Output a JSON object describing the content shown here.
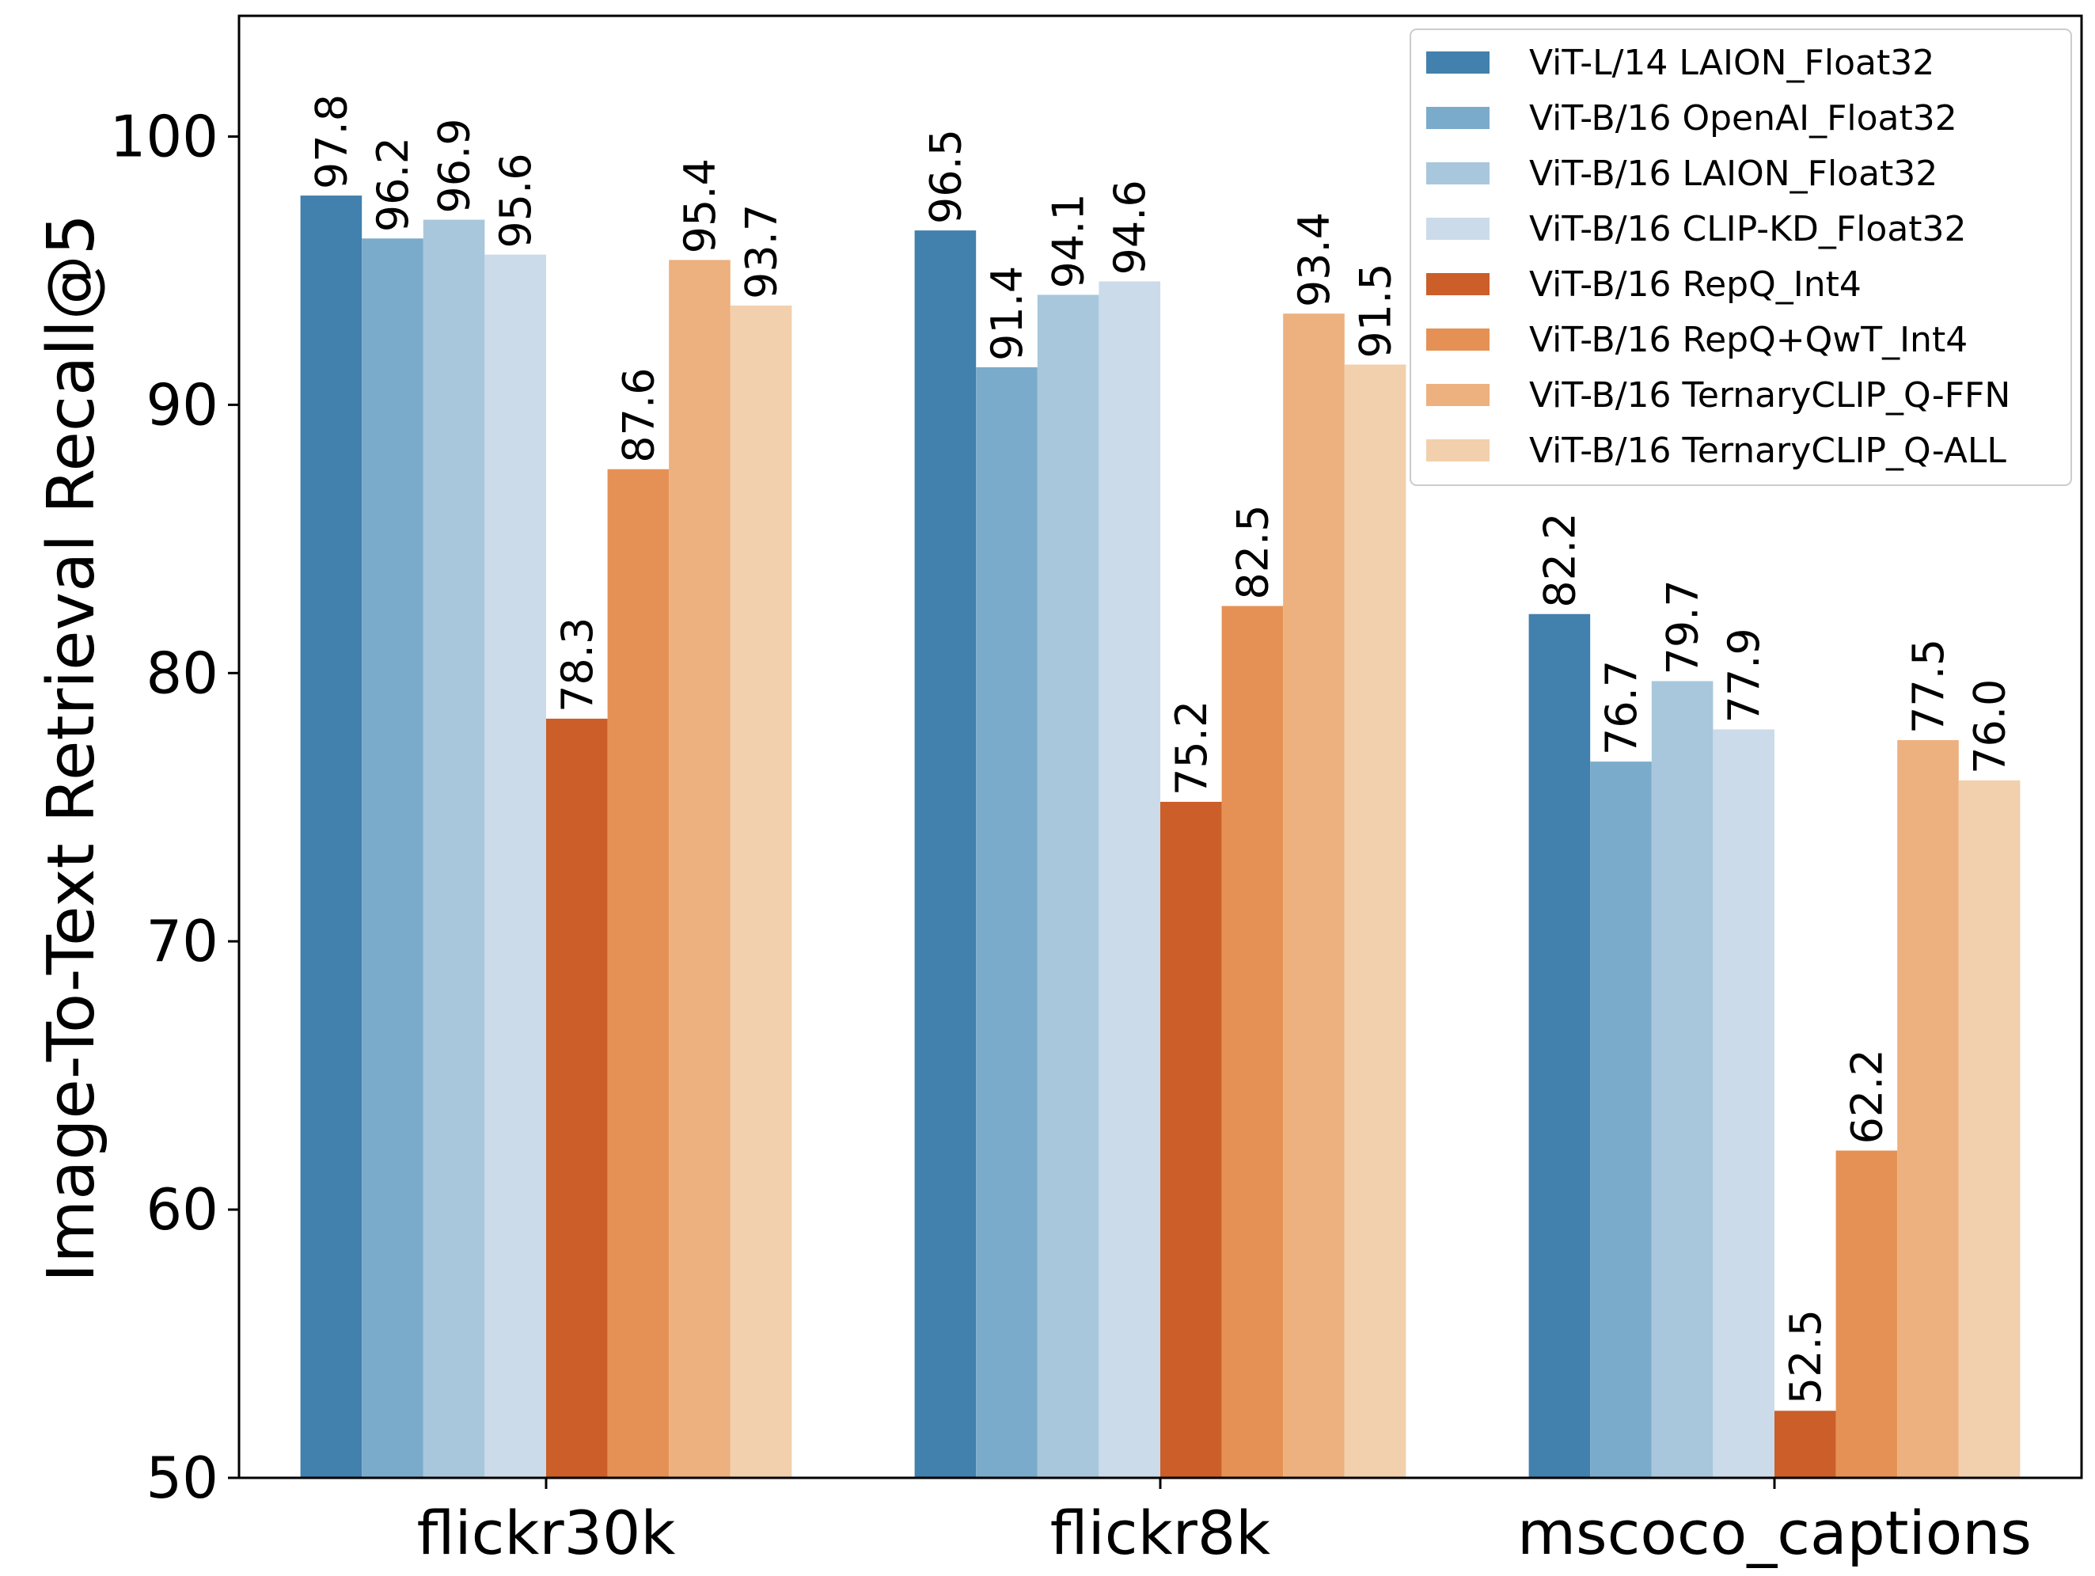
{
  "chart_data": {
    "type": "bar",
    "title": "",
    "xlabel": "",
    "ylabel": "Image-To-Text Retrieval Recall@5",
    "ylim": [
      50,
      104.5
    ],
    "yticks": [
      50,
      60,
      70,
      80,
      90,
      100
    ],
    "categories": [
      "flickr30k",
      "flickr8k",
      "mscoco_captions"
    ],
    "legend_position": "top-right",
    "series": [
      {
        "name": "ViT-L/14 LAION_Float32",
        "color": "#4280ad",
        "values": [
          97.8,
          96.5,
          82.2
        ],
        "labels": [
          "97.8",
          "96.5",
          "82.2"
        ]
      },
      {
        "name": "ViT-B/16 OpenAI_Float32",
        "color": "#7aabcb",
        "values": [
          96.2,
          91.4,
          76.7
        ],
        "labels": [
          "96.2",
          "91.4",
          "76.7"
        ]
      },
      {
        "name": "ViT-B/16 LAION_Float32",
        "color": "#a8c7dc",
        "values": [
          96.9,
          94.1,
          79.7
        ],
        "labels": [
          "96.9",
          "94.1",
          "79.7"
        ]
      },
      {
        "name": "ViT-B/16 CLIP-KD_Float32",
        "color": "#ccdbea",
        "values": [
          95.6,
          94.6,
          77.9
        ],
        "labels": [
          "95.6",
          "94.6",
          "77.9"
        ]
      },
      {
        "name": "ViT-B/16 RepQ_Int4",
        "color": "#cb5e29",
        "values": [
          78.3,
          75.2,
          52.5
        ],
        "labels": [
          "78.3",
          "75.2",
          "52.5"
        ]
      },
      {
        "name": "ViT-B/16 RepQ+QwT_Int4",
        "color": "#e59155",
        "values": [
          87.6,
          82.5,
          62.2
        ],
        "labels": [
          "87.6",
          "82.5",
          "62.2"
        ]
      },
      {
        "name": "ViT-B/16 TernaryCLIP_Q-FFN",
        "color": "#edb07f",
        "values": [
          95.4,
          93.4,
          77.5
        ],
        "labels": [
          "95.4",
          "93.4",
          "77.5"
        ]
      },
      {
        "name": "ViT-B/16 TernaryCLIP_Q-ALL",
        "color": "#f2d0ad",
        "values": [
          93.7,
          91.5,
          76.0
        ],
        "labels": [
          "93.7",
          "91.5",
          "76.0"
        ]
      }
    ]
  }
}
